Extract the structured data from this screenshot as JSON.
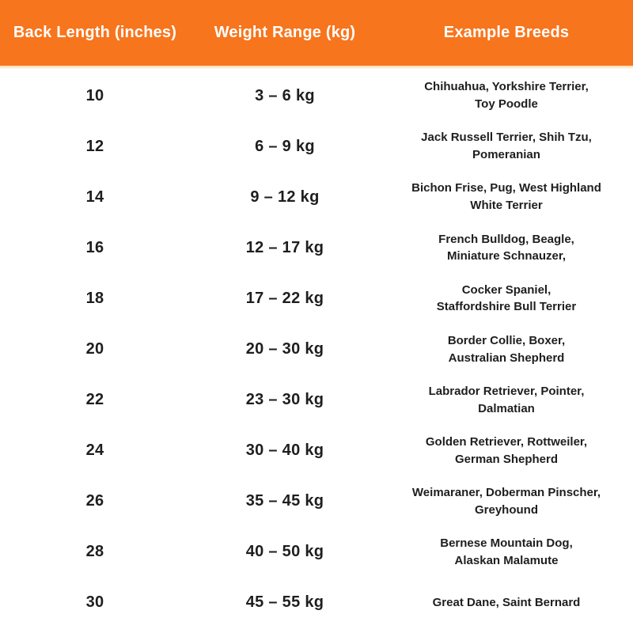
{
  "colors": {
    "header_bg": "#F7751D",
    "header_text": "#FFFFFF",
    "body_text": "#1E1E1E",
    "background": "#FFFFFF"
  },
  "chart_data": {
    "type": "table",
    "title": "",
    "columns": [
      "Back Length (inches)",
      "Weight Range (kg)",
      "Example Breeds"
    ],
    "rows": [
      {
        "back_length": "10",
        "weight_range": "3 – 6 kg",
        "breeds": "Chihuahua,  Yorkshire Terrier,\nToy Poodle"
      },
      {
        "back_length": "12",
        "weight_range": "6 – 9 kg",
        "breeds": "Jack Russell Terrier, Shih Tzu,\nPomeranian"
      },
      {
        "back_length": "14",
        "weight_range": "9 – 12 kg",
        "breeds": "Bichon Frise, Pug, West Highland\nWhite Terrier"
      },
      {
        "back_length": "16",
        "weight_range": "12 – 17 kg",
        "breeds": "French Bulldog, Beagle,\nMiniature Schnauzer,"
      },
      {
        "back_length": "18",
        "weight_range": "17 – 22 kg",
        "breeds": "Cocker Spaniel,\nStaffordshire Bull Terrier"
      },
      {
        "back_length": "20",
        "weight_range": "20 – 30 kg",
        "breeds": "Border Collie, Boxer,\nAustralian Shepherd"
      },
      {
        "back_length": "22",
        "weight_range": "23 – 30 kg",
        "breeds": "Labrador Retriever, Pointer,\nDalmatian"
      },
      {
        "back_length": "24",
        "weight_range": "30 – 40 kg",
        "breeds": "Golden Retriever, Rottweiler,\nGerman Shepherd"
      },
      {
        "back_length": "26",
        "weight_range": "35 – 45 kg",
        "breeds": "Weimaraner, Doberman Pinscher,\nGreyhound"
      },
      {
        "back_length": "28",
        "weight_range": "40 – 50 kg",
        "breeds": "Bernese Mountain Dog,\nAlaskan Malamute"
      },
      {
        "back_length": "30",
        "weight_range": "45 – 55 kg",
        "breeds": "Great Dane, Saint Bernard"
      }
    ]
  }
}
